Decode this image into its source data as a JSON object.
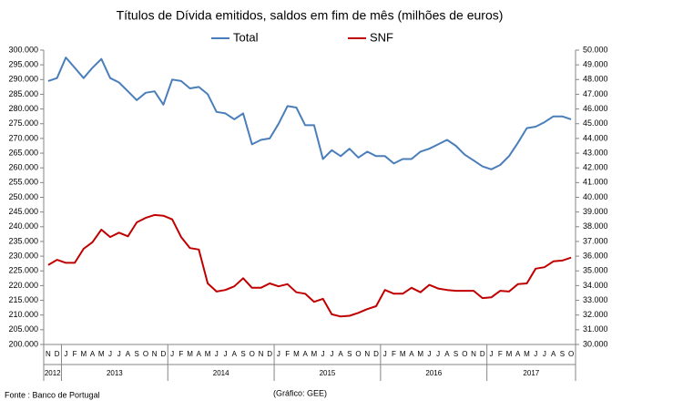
{
  "chart_data": {
    "type": "line",
    "title": "Títulos de Dívida emitidos, saldos em fim de mês  (milhões de euros)",
    "categories": [
      "N",
      "D",
      "J",
      "F",
      "M",
      "A",
      "M",
      "J",
      "J",
      "A",
      "S",
      "O",
      "N",
      "D",
      "J",
      "F",
      "M",
      "A",
      "M",
      "J",
      "J",
      "A",
      "S",
      "O",
      "N",
      "D",
      "J",
      "F",
      "M",
      "A",
      "M",
      "J",
      "J",
      "A",
      "S",
      "O",
      "N",
      "D",
      "J",
      "F",
      "M",
      "A",
      "M",
      "J",
      "J",
      "A",
      "S",
      "O",
      "N",
      "D",
      "J",
      "F",
      "M",
      "A",
      "M",
      "J",
      "J",
      "A",
      "S",
      "O"
    ],
    "year_groups": [
      {
        "label": "2012",
        "span": 2
      },
      {
        "label": "2013",
        "span": 12
      },
      {
        "label": "2014",
        "span": 12
      },
      {
        "label": "2015",
        "span": 12
      },
      {
        "label": "2016",
        "span": 12
      },
      {
        "label": "2017",
        "span": 10
      }
    ],
    "series": [
      {
        "name": "Total",
        "color": "#4a7ebb",
        "axis": "y",
        "values": [
          289500,
          290500,
          297500,
          294000,
          290500,
          294000,
          297000,
          290500,
          289000,
          286000,
          283000,
          285500,
          286000,
          281500,
          290000,
          289500,
          287000,
          287500,
          285000,
          279000,
          278500,
          276500,
          278500,
          268000,
          269500,
          270000,
          275000,
          281000,
          280500,
          274500,
          274500,
          263000,
          266000,
          264000,
          266500,
          263500,
          265500,
          264000,
          264000,
          261500,
          263000,
          263000,
          265500,
          266500,
          268000,
          269500,
          267500,
          264500,
          262500,
          260500,
          259500,
          261000,
          264000,
          268500,
          273500,
          274000,
          275500,
          277500,
          277500,
          276500
        ]
      },
      {
        "name": "SNF",
        "color": "#c00000",
        "axis": "y2",
        "values": [
          35400,
          35750,
          35550,
          35550,
          36500,
          36950,
          37800,
          37300,
          37600,
          37350,
          38300,
          38600,
          38800,
          38750,
          38500,
          37300,
          36550,
          36450,
          34150,
          33600,
          33700,
          33950,
          34500,
          33850,
          33850,
          34150,
          33950,
          34100,
          33550,
          33450,
          32900,
          33100,
          32050,
          31900,
          31950,
          32150,
          32400,
          32600,
          33700,
          33450,
          33450,
          33850,
          33550,
          34050,
          33800,
          33700,
          33650,
          33650,
          33650,
          33150,
          33200,
          33650,
          33600,
          34100,
          34150,
          35150,
          35250,
          35650,
          35700,
          35900
        ]
      }
    ],
    "ylim": [
      200000,
      300000
    ],
    "yticks": [
      {
        "value": 200000,
        "label": "200.000"
      },
      {
        "value": 205000,
        "label": "205.000"
      },
      {
        "value": 210000,
        "label": "210.000"
      },
      {
        "value": 215000,
        "label": "215.000"
      },
      {
        "value": 220000,
        "label": "220.000"
      },
      {
        "value": 225000,
        "label": "225.000"
      },
      {
        "value": 230000,
        "label": "230.000"
      },
      {
        "value": 235000,
        "label": "235.000"
      },
      {
        "value": 240000,
        "label": "240.000"
      },
      {
        "value": 245000,
        "label": "245.000"
      },
      {
        "value": 250000,
        "label": "250.000"
      },
      {
        "value": 255000,
        "label": "255.000"
      },
      {
        "value": 260000,
        "label": "260.000"
      },
      {
        "value": 265000,
        "label": "265.000"
      },
      {
        "value": 270000,
        "label": "270.000"
      },
      {
        "value": 275000,
        "label": "275.000"
      },
      {
        "value": 280000,
        "label": "280.000"
      },
      {
        "value": 285000,
        "label": "285.000"
      },
      {
        "value": 290000,
        "label": "290.000"
      },
      {
        "value": 295000,
        "label": "295.000"
      },
      {
        "value": 300000,
        "label": "300.000"
      }
    ],
    "y2lim": [
      30000,
      50000
    ],
    "y2ticks": [
      {
        "value": 30000,
        "label": "30.000"
      },
      {
        "value": 31000,
        "label": "31.000"
      },
      {
        "value": 32000,
        "label": "32.000"
      },
      {
        "value": 33000,
        "label": "33.000"
      },
      {
        "value": 34000,
        "label": "34.000"
      },
      {
        "value": 35000,
        "label": "35.000"
      },
      {
        "value": 36000,
        "label": "36.000"
      },
      {
        "value": 37000,
        "label": "37.000"
      },
      {
        "value": 38000,
        "label": "38.000"
      },
      {
        "value": 39000,
        "label": "39.000"
      },
      {
        "value": 40000,
        "label": "40.000"
      },
      {
        "value": 41000,
        "label": "41.000"
      },
      {
        "value": 42000,
        "label": "42.000"
      },
      {
        "value": 43000,
        "label": "43.000"
      },
      {
        "value": 44000,
        "label": "44.000"
      },
      {
        "value": 45000,
        "label": "45.000"
      },
      {
        "value": 46000,
        "label": "46.000"
      },
      {
        "value": 47000,
        "label": "47.000"
      },
      {
        "value": 48000,
        "label": "48.000"
      },
      {
        "value": 49000,
        "label": "49.000"
      },
      {
        "value": 50000,
        "label": "50.000"
      }
    ],
    "source": "Fonte : Banco de Portugal",
    "credit": "(Gráfico: GEE)"
  }
}
